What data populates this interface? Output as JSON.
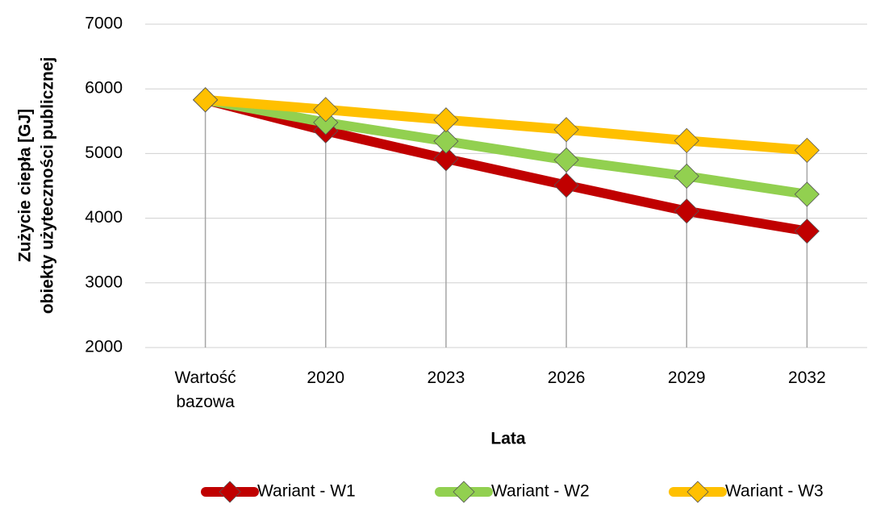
{
  "chart_data": {
    "type": "line",
    "y_label": [
      "Zużycie ciepła [GJ]",
      "obiekty użyteczności publicznej"
    ],
    "x_label": "Lata",
    "categories": [
      "Wartość bazowa",
      "2020",
      "2023",
      "2026",
      "2029",
      "2032"
    ],
    "series": [
      {
        "name": "Wariant - W1",
        "color": "#c00000",
        "values": [
          5830,
          5350,
          4920,
          4510,
          4110,
          3800
        ]
      },
      {
        "name": "Wariant - W2",
        "color": "#92d050",
        "values": [
          5830,
          5480,
          5190,
          4900,
          4650,
          4370
        ]
      },
      {
        "name": "Wariant - W3",
        "color": "#ffc000",
        "values": [
          5830,
          5680,
          5520,
          5370,
          5200,
          5050
        ]
      }
    ],
    "ylim": [
      2000,
      7000
    ],
    "yticks": [
      2000,
      3000,
      4000,
      5000,
      6000,
      7000
    ],
    "grid": true,
    "legend": "bottom"
  }
}
